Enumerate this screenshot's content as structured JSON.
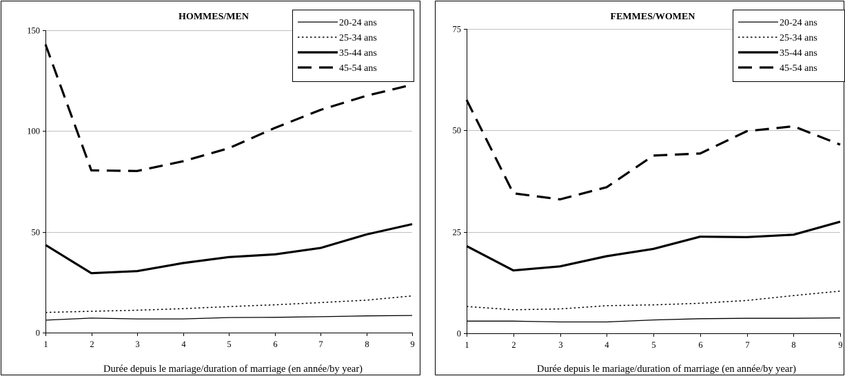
{
  "colors": {
    "line": "#000000",
    "grid": "#c0c0c0",
    "background": "#ffffff"
  },
  "chart_data": [
    {
      "type": "line",
      "title": "HOMMES/MEN",
      "xlabel": "Durée depuis le mariage/duration of marriage (en année/by year)",
      "ylabel": "",
      "x": [
        1,
        2,
        3,
        4,
        5,
        6,
        7,
        8,
        9
      ],
      "xlim": [
        1,
        9
      ],
      "ylim": [
        0,
        150
      ],
      "yticks": [
        0,
        50,
        100,
        150
      ],
      "grid": true,
      "legend_position": "top-right",
      "series": [
        {
          "name": "20-24 ans",
          "style": "thin-solid",
          "values": [
            6.2,
            7.2,
            6.8,
            6.8,
            7.5,
            7.6,
            7.9,
            8.3,
            8.5
          ]
        },
        {
          "name": "25-34 ans",
          "style": "dotted",
          "values": [
            10.0,
            10.6,
            11.1,
            11.9,
            12.9,
            13.8,
            14.9,
            16.1,
            18.2
          ]
        },
        {
          "name": "35-44 ans",
          "style": "thick-solid",
          "values": [
            43.5,
            29.5,
            30.5,
            34.5,
            37.5,
            38.8,
            42.0,
            48.7,
            53.8
          ]
        },
        {
          "name": "45-54 ans",
          "style": "dashed",
          "values": [
            143.0,
            80.5,
            80.2,
            85.0,
            91.5,
            101.5,
            110.5,
            117.5,
            123.0
          ]
        }
      ]
    },
    {
      "type": "line",
      "title": "FEMMES/WOMEN",
      "xlabel": "Durée depuis le mariage/duration of marriage (en année/by year)",
      "ylabel": "",
      "x": [
        1,
        2,
        3,
        4,
        5,
        6,
        7,
        8,
        9
      ],
      "xlim": [
        1,
        9
      ],
      "ylim": [
        0,
        75
      ],
      "yticks": [
        0,
        25,
        50,
        75
      ],
      "grid": true,
      "legend_position": "top-right",
      "series": [
        {
          "name": "20-24 ans",
          "style": "thin-solid",
          "values": [
            3.0,
            3.0,
            2.8,
            2.8,
            3.3,
            3.6,
            3.7,
            3.7,
            3.8
          ]
        },
        {
          "name": "25-34 ans",
          "style": "dotted",
          "values": [
            6.6,
            5.8,
            6.0,
            6.8,
            7.0,
            7.4,
            8.1,
            9.3,
            10.4
          ]
        },
        {
          "name": "35-44 ans",
          "style": "thick-solid",
          "values": [
            21.5,
            15.5,
            16.5,
            19.0,
            20.8,
            23.8,
            23.7,
            24.3,
            27.5
          ]
        },
        {
          "name": "45-54 ans",
          "style": "dashed",
          "values": [
            57.5,
            34.5,
            33.0,
            36.0,
            43.8,
            44.3,
            49.8,
            51.0,
            46.5
          ]
        }
      ]
    }
  ]
}
